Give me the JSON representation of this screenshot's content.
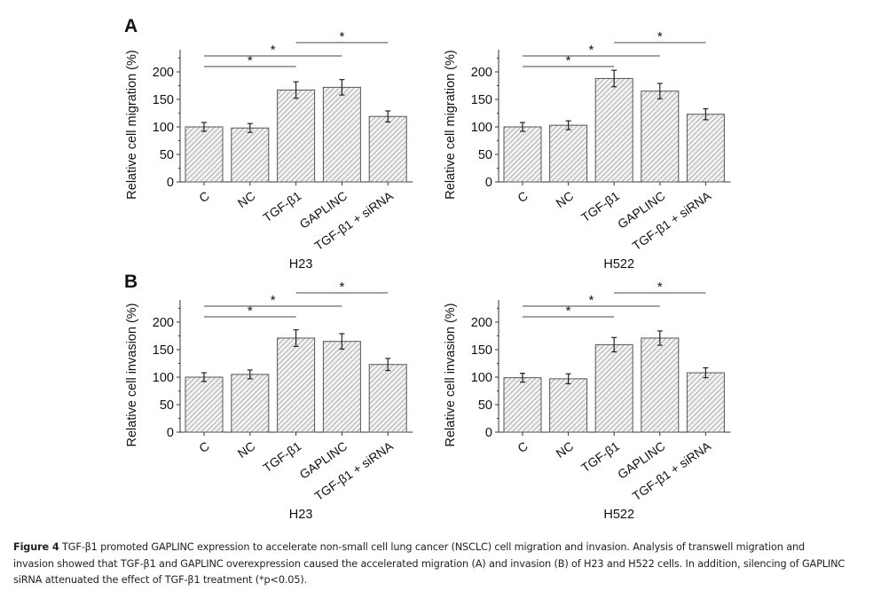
{
  "figure": {
    "panel_labels": [
      "A",
      "B"
    ]
  },
  "chart_data": [
    {
      "type": "bar",
      "panel": "A",
      "title": "H23",
      "xlabel": "H23",
      "ylabel": "Relative cell migration (%)",
      "categories": [
        "C",
        "NC",
        "TGF-β1",
        "GAPLINC",
        "TGF-β1 + siRNA"
      ],
      "values": [
        100,
        98,
        167,
        172,
        119
      ],
      "errors": [
        8,
        8,
        15,
        14,
        10
      ],
      "yticks": [
        0,
        50,
        100,
        150,
        200
      ],
      "ylim": [
        0,
        240
      ],
      "grid": false,
      "significance": [
        {
          "from": "C",
          "to": "TGF-β1",
          "label": "*"
        },
        {
          "from": "C",
          "to": "GAPLINC",
          "label": "*"
        },
        {
          "from": "TGF-β1",
          "to": "TGF-β1 + siRNA",
          "label": "*"
        }
      ]
    },
    {
      "type": "bar",
      "panel": "A",
      "title": "H522",
      "xlabel": "H522",
      "ylabel": "Relative cell migration (%)",
      "categories": [
        "C",
        "NC",
        "TGF-β1",
        "GAPLINC",
        "TGF-β1 + siRNA"
      ],
      "values": [
        100,
        103,
        188,
        165,
        123
      ],
      "errors": [
        8,
        8,
        15,
        14,
        10
      ],
      "yticks": [
        0,
        50,
        100,
        150,
        200
      ],
      "ylim": [
        0,
        240
      ],
      "grid": false,
      "significance": [
        {
          "from": "C",
          "to": "TGF-β1",
          "label": "*"
        },
        {
          "from": "C",
          "to": "GAPLINC",
          "label": "*"
        },
        {
          "from": "TGF-β1",
          "to": "TGF-β1 + siRNA",
          "label": "*"
        }
      ]
    },
    {
      "type": "bar",
      "panel": "B",
      "title": "H23",
      "xlabel": "H23",
      "ylabel": "Relative cell invasion (%)",
      "categories": [
        "C",
        "NC",
        "TGF-β1",
        "GAPLINC",
        "TGF-β1 + siRNA"
      ],
      "values": [
        100,
        105,
        171,
        165,
        123
      ],
      "errors": [
        8,
        8,
        15,
        14,
        11
      ],
      "yticks": [
        0,
        50,
        100,
        150,
        200
      ],
      "ylim": [
        0,
        240
      ],
      "grid": false,
      "significance": [
        {
          "from": "C",
          "to": "TGF-β1",
          "label": "*"
        },
        {
          "from": "C",
          "to": "GAPLINC",
          "label": "*"
        },
        {
          "from": "TGF-β1",
          "to": "TGF-β1 + siRNA",
          "label": "*"
        }
      ]
    },
    {
      "type": "bar",
      "panel": "B",
      "title": "H522",
      "xlabel": "H522",
      "ylabel": "Relative cell invasion (%)",
      "categories": [
        "C",
        "NC",
        "TGF-β1",
        "GAPLINC",
        "TGF-β1 + siRNA"
      ],
      "values": [
        99,
        97,
        159,
        171,
        108
      ],
      "errors": [
        8,
        9,
        13,
        13,
        9
      ],
      "yticks": [
        0,
        50,
        100,
        150,
        200
      ],
      "ylim": [
        0,
        240
      ],
      "grid": false,
      "significance": [
        {
          "from": "C",
          "to": "TGF-β1",
          "label": "*"
        },
        {
          "from": "C",
          "to": "GAPLINC",
          "label": "*"
        },
        {
          "from": "TGF-β1",
          "to": "TGF-β1 + siRNA",
          "label": "*"
        }
      ]
    }
  ],
  "caption": {
    "label": "Figure 4",
    "lines": [
      " TGF-β1 promoted GAPLINC expression to accelerate  non-small cell lung cancer (NSCLC) cell migration and invasion. Analysis of transwell migration and",
      "invasion showed that TGF-β1 and GAPLINC overexpression caused the accelerated migration (A) and invasion (B) of H23 and H522 cells. In addition, silencing of GAPLINC",
      "siRNA attenuated the effect of TGF-β1 treatment (*p<0.05)."
    ]
  }
}
